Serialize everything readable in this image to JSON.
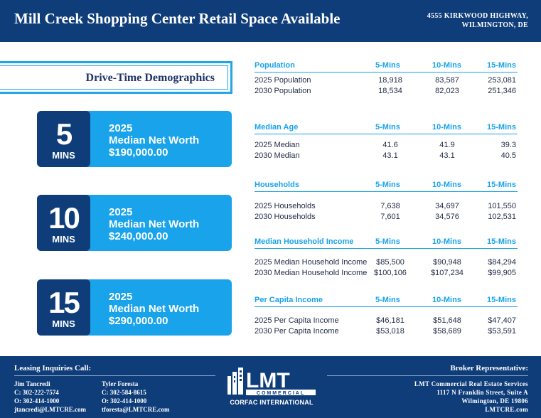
{
  "header": {
    "title": "Mill Creek Shopping Center Retail Space Available",
    "address_line1": "4555 KIRKWOOD HIGHWAY,",
    "address_line2": "WILMINGTON, DE"
  },
  "drive_time": {
    "label": "Drive-Time Demographics"
  },
  "cards": [
    {
      "num": "5",
      "unit": "MINS",
      "year": "2025",
      "label": "Median Net Worth",
      "value": "$190,000.00"
    },
    {
      "num": "10",
      "unit": "MINS",
      "year": "2025",
      "label": "Median Net Worth",
      "value": "$240,000.00"
    },
    {
      "num": "15",
      "unit": "MINS",
      "year": "2025",
      "label": "Median Net Worth",
      "value": "$290,000.00"
    }
  ],
  "sections": [
    {
      "title": "Population",
      "cols": [
        "5-Mins",
        "10-Mins",
        "15-Mins"
      ],
      "rows": [
        {
          "label": "2025 Population",
          "v": [
            "18,918",
            "83,587",
            "253,081"
          ]
        },
        {
          "label": "2030 Population",
          "v": [
            "18,534",
            "82,023",
            "251,346"
          ]
        }
      ]
    },
    {
      "title": "Median Age",
      "cols": [
        "5-Mins",
        "10-Mins",
        "15-Mins"
      ],
      "rows": [
        {
          "label": "2025 Median",
          "v": [
            "41.6",
            "41.9",
            "39.3"
          ]
        },
        {
          "label": "2030 Median",
          "v": [
            "43.1",
            "43.1",
            "40.5"
          ]
        }
      ]
    },
    {
      "title": "Households",
      "cols": [
        "5-Mins",
        "10-Mins",
        "15-Mins"
      ],
      "rows": [
        {
          "label": "2025 Households",
          "v": [
            "7,638",
            "34,697",
            "101,550"
          ]
        },
        {
          "label": "2030 Households",
          "v": [
            "7,601",
            "34,576",
            "102,531"
          ]
        }
      ]
    },
    {
      "title": "Median Household Income",
      "cols": [
        "5-Mins",
        "10-Mins",
        "15-Mins"
      ],
      "rows": [
        {
          "label": "2025 Median Household Income",
          "v": [
            "$85,500",
            "$90,948",
            "$84,294"
          ]
        },
        {
          "label": "2030 Median Household Income",
          "v": [
            "$100,106",
            "$107,234",
            "$99,905"
          ]
        }
      ]
    },
    {
      "title": "Per Capita Income",
      "cols": [
        "5-Mins",
        "10-Mins",
        "15-Mins"
      ],
      "rows": [
        {
          "label": "2025 Per Capita Income",
          "v": [
            "$46,181",
            "$51,648",
            "$47,407"
          ]
        },
        {
          "label": "2030 Per Capita Income",
          "v": [
            "$53,018",
            "$58,689",
            "$53,591"
          ]
        }
      ]
    }
  ],
  "footer": {
    "leasing_heading": "Leasing Inquiries Call:",
    "contacts": [
      {
        "name": "Jim Tancredi",
        "cell": "C: 302-222-7574",
        "office": "O: 302-414-1000",
        "email": "jtancredi@LMTCRE.com"
      },
      {
        "name": "Tyler Foresta",
        "cell": "C: 302-584-8615",
        "office": "O: 302-414-1000",
        "email": "tforesta@LMTCRE.com"
      }
    ],
    "logo": {
      "wordmark": "LMT",
      "tagline": "COMMERCIAL",
      "sub": "CORFAC INTERNATIONAL"
    },
    "broker_heading": "Broker Representative:",
    "broker": {
      "company": "LMT Commercial Real Estate Services",
      "street": "1117 N Franklin Street, Suite A",
      "city": "Wilmington, DE 19806",
      "web": "LMTCRE.com"
    }
  }
}
